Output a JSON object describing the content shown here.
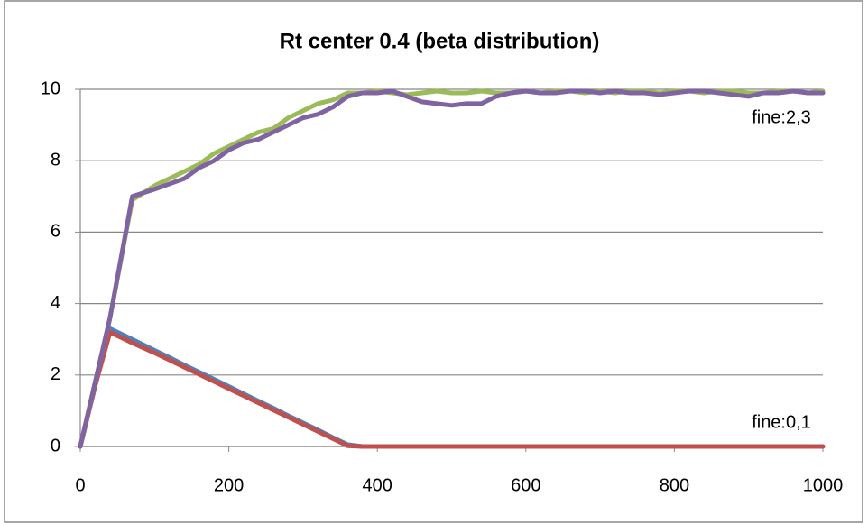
{
  "chart_data": {
    "type": "line",
    "title": "Rt center 0.4 (beta distribution)",
    "annotations": [
      "fine:2,3",
      "fine:0,1"
    ],
    "x": [
      0,
      20,
      40,
      70,
      100,
      120,
      140,
      160,
      180,
      200,
      220,
      240,
      260,
      280,
      300,
      320,
      340,
      360,
      380,
      400,
      420,
      440,
      460,
      480,
      500,
      520,
      540,
      560,
      580,
      600,
      620,
      640,
      660,
      680,
      700,
      720,
      740,
      760,
      780,
      800,
      820,
      840,
      860,
      880,
      900,
      920,
      940,
      960,
      980,
      1000
    ],
    "series": [
      {
        "color": "#4f81bd",
        "values": [
          0,
          1.7,
          3.3,
          3.0,
          2.69,
          2.49,
          2.28,
          2.08,
          1.88,
          1.68,
          1.47,
          1.27,
          1.07,
          0.86,
          0.66,
          0.46,
          0.25,
          0.05,
          0,
          0,
          0,
          0,
          0,
          0,
          0,
          0,
          0,
          0,
          0,
          0,
          0,
          0,
          0,
          0,
          0,
          0,
          0,
          0,
          0,
          0,
          0,
          0,
          0,
          0,
          0,
          0,
          0,
          0,
          0,
          0
        ]
      },
      {
        "color": "#c0504d",
        "values": [
          0,
          1.7,
          3.2,
          2.9,
          2.62,
          2.42,
          2.22,
          2.02,
          1.82,
          1.62,
          1.42,
          1.22,
          1.02,
          0.82,
          0.62,
          0.42,
          0.22,
          0.02,
          0,
          0,
          0,
          0,
          0,
          0,
          0,
          0,
          0,
          0,
          0,
          0,
          0,
          0,
          0,
          0,
          0,
          0,
          0,
          0,
          0,
          0,
          0,
          0,
          0,
          0,
          0,
          0,
          0,
          0,
          0,
          0
        ]
      },
      {
        "color": "#9bbb59",
        "values": [
          0,
          1.8,
          3.6,
          6.9,
          7.3,
          7.5,
          7.7,
          7.9,
          8.2,
          8.4,
          8.6,
          8.8,
          8.9,
          9.2,
          9.4,
          9.6,
          9.7,
          9.9,
          9.9,
          9.95,
          9.9,
          9.85,
          9.9,
          9.95,
          9.9,
          9.9,
          9.95,
          9.9,
          9.9,
          9.95,
          9.9,
          9.95,
          9.95,
          9.9,
          9.95,
          9.9,
          9.95,
          9.95,
          9.9,
          9.95,
          9.95,
          9.9,
          9.95,
          9.95,
          9.9,
          9.9,
          9.95,
          9.95,
          9.9,
          9.95
        ]
      },
      {
        "color": "#8064a2",
        "values": [
          0,
          1.8,
          3.6,
          7.0,
          7.2,
          7.35,
          7.5,
          7.8,
          8.0,
          8.3,
          8.5,
          8.6,
          8.8,
          9.0,
          9.2,
          9.3,
          9.5,
          9.8,
          9.9,
          9.9,
          9.95,
          9.8,
          9.65,
          9.6,
          9.55,
          9.6,
          9.6,
          9.8,
          9.9,
          9.95,
          9.9,
          9.9,
          9.95,
          9.95,
          9.9,
          9.95,
          9.9,
          9.9,
          9.85,
          9.9,
          9.95,
          9.95,
          9.9,
          9.85,
          9.8,
          9.9,
          9.9,
          9.95,
          9.9,
          9.9
        ]
      }
    ],
    "xlim": [
      0,
      1000
    ],
    "xticks": [
      0,
      200,
      400,
      600,
      800,
      1000
    ],
    "ylim": [
      0,
      10
    ],
    "yticks": [
      0,
      2,
      4,
      6,
      8,
      10
    ],
    "grid": true
  }
}
